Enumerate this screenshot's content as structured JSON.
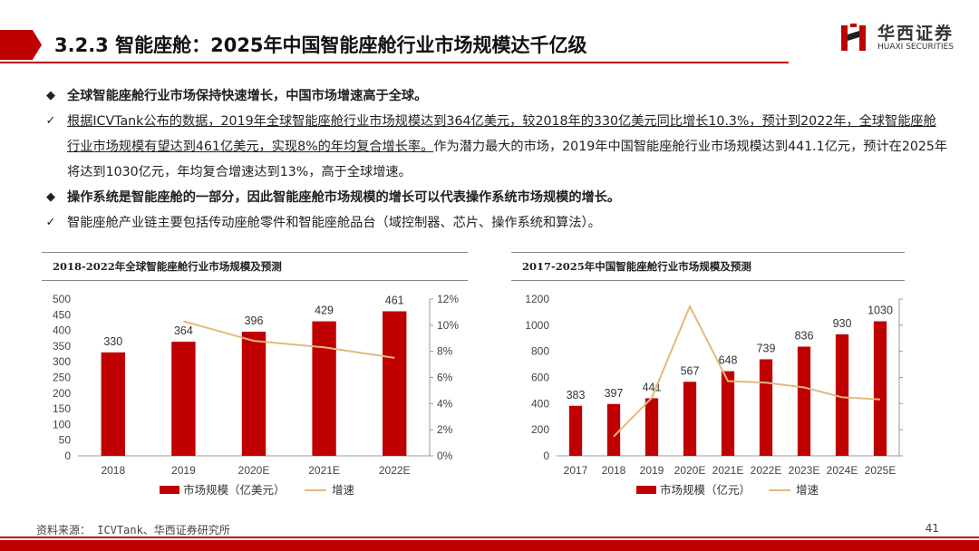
{
  "header": {
    "title": "3.2.3 智能座舱：2025年中国智能座舱行业市场规模达千亿级",
    "logo_cn": "华西证券",
    "logo_en": "HUAXI SECURITIES",
    "accent": "#c00000"
  },
  "bullets": [
    {
      "marker": "◆",
      "style": "bold",
      "text": "全球智能座舱行业市场保持快速增长，中国市场增速高于全球。"
    },
    {
      "marker": "✓",
      "style": "normal",
      "parts": [
        {
          "text": "根据ICVTank公布的数据，2019年全球智能座舱行业市场规模达到364亿美元，较2018年的330亿美元同比增长10.3%，预计到2022年，全球智能座舱行业市场规模有望达到461亿美元，实现8%的年均复合增长率。",
          "underline": true
        },
        {
          "text": "作为潜力最大的市场，2019年中国智能座舱行业市场规模达到441.1亿元，预计在2025年将达到1030亿元，年均复合增速达到13%，高于全球增速。",
          "underline": false
        }
      ]
    },
    {
      "marker": "◆",
      "style": "bold",
      "text": "操作系统是智能座舱的一部分，因此智能座舱市场规模的增长可以代表操作系统市场规模的增长。"
    },
    {
      "marker": "✓",
      "style": "normal",
      "text": "智能座舱产业链主要包括传动座舱零件和智能座舱品台（域控制器、芯片、操作系统和算法）。"
    }
  ],
  "chart_data": [
    {
      "type": "bar",
      "title": "2018-2022年全球智能座舱行业市场规模及预测",
      "categories": [
        "2018",
        "2019",
        "2020E",
        "2021E",
        "2022E"
      ],
      "series": [
        {
          "name": "市场规模（亿美元）",
          "type": "bar",
          "axis": "left",
          "color": "#c00000",
          "values": [
            330,
            364,
            396,
            429,
            461
          ]
        },
        {
          "name": "增速",
          "type": "line",
          "axis": "right",
          "color": "#e3b97e",
          "values": [
            null,
            10.3,
            8.8,
            8.3,
            7.5
          ]
        }
      ],
      "left_axis": {
        "min": 0,
        "max": 500,
        "step": 50,
        "ticks": [
          "0",
          "50",
          "100",
          "150",
          "200",
          "250",
          "300",
          "350",
          "400",
          "450",
          "500"
        ]
      },
      "right_axis": {
        "min": 0,
        "max": 12,
        "step": 2,
        "ticks": [
          "0%",
          "2%",
          "4%",
          "6%",
          "8%",
          "10%",
          "12%"
        ]
      },
      "grid": false,
      "legend_position": "bottom"
    },
    {
      "type": "bar",
      "title": "2017-2025年中国智能座舱行业市场规模及预测",
      "categories": [
        "2017",
        "2018",
        "2019",
        "2020E",
        "2021E",
        "2022E",
        "2023E",
        "2024E",
        "2025E"
      ],
      "series": [
        {
          "name": "市场规模（亿元）",
          "type": "bar",
          "axis": "left",
          "color": "#c00000",
          "values": [
            383,
            397,
            441,
            567,
            648,
            739,
            836,
            930,
            1030
          ]
        },
        {
          "name": "增速",
          "type": "line",
          "axis": "right",
          "color": "#e3b97e",
          "values": [
            null,
            3.7,
            11.1,
            28.6,
            14.3,
            14.0,
            13.1,
            11.2,
            10.8
          ]
        }
      ],
      "left_axis": {
        "min": 0,
        "max": 1200,
        "step": 200,
        "ticks": [
          "0",
          "200",
          "400",
          "600",
          "800",
          "1000",
          "1200"
        ]
      },
      "right_axis": {
        "min": 0,
        "max": 30,
        "step": 5,
        "ticks": [
          "0%",
          "5%",
          "10%",
          "15%",
          "20%",
          "25%",
          "30%"
        ]
      },
      "grid": false,
      "legend_position": "bottom"
    }
  ],
  "footer": {
    "source": "资料来源： ICVTank、华西证券研究所",
    "page": "41"
  }
}
